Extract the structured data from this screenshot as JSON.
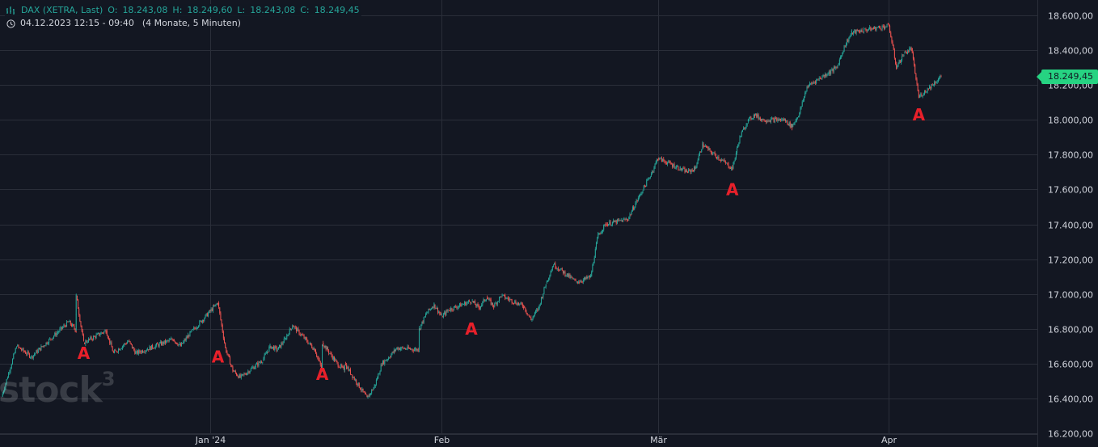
{
  "legend": {
    "symbol": "DAX (XETRA, Last)",
    "open_label": "O:",
    "open_value": "18.243,08",
    "high_label": "H:",
    "high_value": "18.249,60",
    "low_label": "L:",
    "low_value": "18.243,08",
    "close_label": "C:",
    "close_value": "18.249,45",
    "date_range": "04.12.2023 12:15 - 09:40",
    "period": "(4 Monate, 5 Minuten)",
    "icons": [
      "bar-chart-icon",
      "clock-icon"
    ]
  },
  "watermark": {
    "text": "stock",
    "sup": "3"
  },
  "last_price_tag": "18.249,45",
  "colors": {
    "background": "#131722",
    "grid": "#2a2e39",
    "up": "#26a69a",
    "down": "#ef5350",
    "marker": "#e8202a",
    "price_tag": "#26d382",
    "text": "#d1d4dc"
  },
  "chart_data": {
    "type": "candlestick",
    "y_axis": {
      "min": 16200,
      "max": 18600,
      "ticks": [
        "16.200,00",
        "16.400,00",
        "16.600,00",
        "16.800,00",
        "17.000,00",
        "17.200,00",
        "17.400,00",
        "17.600,00",
        "17.800,00",
        "18.000,00",
        "18.200,00",
        "18.400,00",
        "18.600,00"
      ]
    },
    "x_axis": {
      "ticks": [
        "Jan '24",
        "Feb",
        "Mär",
        "Apr"
      ]
    },
    "grid": true,
    "last_price": 18249.45,
    "price_path": [
      [
        "2023-12-04",
        16410
      ],
      [
        "2023-12-06",
        16700
      ],
      [
        "2023-12-08",
        16640
      ],
      [
        "2023-12-11",
        16760
      ],
      [
        "2023-12-13",
        16840
      ],
      [
        "2023-12-14",
        16790
      ],
      [
        "2023-12-14",
        16990
      ],
      [
        "2023-12-15",
        16720
      ],
      [
        "2023-12-18",
        16790
      ],
      [
        "2023-12-19",
        16660
      ],
      [
        "2023-12-21",
        16730
      ],
      [
        "2023-12-22",
        16660
      ],
      [
        "2023-12-27",
        16740
      ],
      [
        "2023-12-28",
        16700
      ],
      [
        "2023-12-29",
        16760
      ],
      [
        "2024-01-02",
        16950
      ],
      [
        "2024-01-03",
        16690
      ],
      [
        "2024-01-04",
        16560
      ],
      [
        "2024-01-05",
        16520
      ],
      [
        "2024-01-08",
        16620
      ],
      [
        "2024-01-09",
        16700
      ],
      [
        "2024-01-10",
        16680
      ],
      [
        "2024-01-11",
        16740
      ],
      [
        "2024-01-12",
        16820
      ],
      [
        "2024-01-15",
        16680
      ],
      [
        "2024-01-16",
        16560
      ],
      [
        "2024-01-16",
        16720
      ],
      [
        "2024-01-17",
        16660
      ],
      [
        "2024-01-18",
        16600
      ],
      [
        "2024-01-19",
        16560
      ],
      [
        "2024-01-19",
        16600
      ],
      [
        "2024-01-22",
        16400
      ],
      [
        "2024-01-23",
        16470
      ],
      [
        "2024-01-24",
        16600
      ],
      [
        "2024-01-25",
        16640
      ],
      [
        "2024-01-26",
        16690
      ],
      [
        "2024-01-29",
        16680
      ],
      [
        "2024-01-29",
        16800
      ],
      [
        "2024-01-30",
        16890
      ],
      [
        "2024-01-31",
        16940
      ],
      [
        "2024-02-01",
        16870
      ],
      [
        "2024-02-02",
        16910
      ],
      [
        "2024-02-05",
        16960
      ],
      [
        "2024-02-06",
        16920
      ],
      [
        "2024-02-07",
        16980
      ],
      [
        "2024-02-08",
        16930
      ],
      [
        "2024-02-09",
        16990
      ],
      [
        "2024-02-12",
        16930
      ],
      [
        "2024-02-13",
        16850
      ],
      [
        "2024-02-14",
        16920
      ],
      [
        "2024-02-15",
        17060
      ],
      [
        "2024-02-16",
        17170
      ],
      [
        "2024-02-19",
        17070
      ],
      [
        "2024-02-20",
        17080
      ],
      [
        "2024-02-21",
        17100
      ],
      [
        "2024-02-22",
        17340
      ],
      [
        "2024-02-23",
        17400
      ],
      [
        "2024-02-26",
        17430
      ],
      [
        "2024-02-27",
        17520
      ],
      [
        "2024-02-28",
        17600
      ],
      [
        "2024-02-29",
        17680
      ],
      [
        "2024-03-01",
        17780
      ],
      [
        "2024-03-04",
        17720
      ],
      [
        "2024-03-05",
        17700
      ],
      [
        "2024-03-06",
        17720
      ],
      [
        "2024-03-07",
        17860
      ],
      [
        "2024-03-08",
        17820
      ],
      [
        "2024-03-11",
        17720
      ],
      [
        "2024-03-12",
        17900
      ],
      [
        "2024-03-13",
        17990
      ],
      [
        "2024-03-14",
        18030
      ],
      [
        "2024-03-15",
        18000
      ],
      [
        "2024-03-18",
        18000
      ],
      [
        "2024-03-19",
        17960
      ],
      [
        "2024-03-20",
        18040
      ],
      [
        "2024-03-21",
        18190
      ],
      [
        "2024-03-22",
        18220
      ],
      [
        "2024-03-25",
        18300
      ],
      [
        "2024-03-26",
        18420
      ],
      [
        "2024-03-27",
        18500
      ],
      [
        "2024-03-28",
        18510
      ],
      [
        "2024-04-01",
        18540
      ],
      [
        "2024-04-02",
        18300
      ],
      [
        "2024-04-03",
        18380
      ],
      [
        "2024-04-04",
        18410
      ],
      [
        "2024-04-05",
        18130
      ],
      [
        "2024-04-08",
        18249
      ]
    ],
    "markers": [
      {
        "label": "A",
        "date": "2023-12-15",
        "price": 16720
      },
      {
        "label": "A",
        "date": "2024-01-02",
        "price": 16700
      },
      {
        "label": "A",
        "date": "2024-01-16",
        "price": 16600
      },
      {
        "label": "A",
        "date": "2024-02-05",
        "price": 16860
      },
      {
        "label": "A",
        "date": "2024-03-11",
        "price": 17660
      },
      {
        "label": "A",
        "date": "2024-04-05",
        "price": 18090
      }
    ]
  }
}
